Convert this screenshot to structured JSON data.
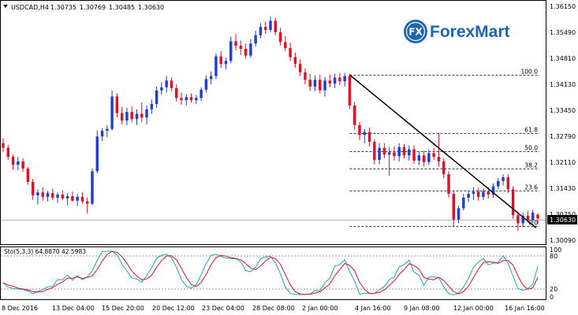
{
  "header": {
    "symbol": "USDCAD,H4",
    "open": "1.30735",
    "high": "1.30769",
    "low": "1.30485",
    "close": "1.30630"
  },
  "logo": {
    "text": "ForexMart",
    "mark": "FX"
  },
  "current_price": "1.30630",
  "price_axis": [
    "1.36150",
    "1.35490",
    "1.34810",
    "1.34130",
    "1.33450",
    "1.32790",
    "1.32110",
    "1.31430",
    "1.30750",
    "1.30090"
  ],
  "fib_levels": [
    {
      "label": "100.0",
      "value": 1.3443
    },
    {
      "label": "61.8",
      "value": 1.3288
    },
    {
      "label": "50.0",
      "value": 1.3242
    },
    {
      "label": "38.2",
      "value": 1.3196
    },
    {
      "label": "23.6",
      "value": 1.3136
    },
    {
      "label": "0.0",
      "value": 1.3042
    }
  ],
  "indicator": {
    "label": "Sto(5,3,3) 64.8870 42.5983",
    "axis": [
      "100",
      "80",
      "20",
      "0"
    ]
  },
  "time_axis": [
    "8 Dec 2016",
    "13 Dec 04:00",
    "15 Dec 20:00",
    "20 Dec 12:00",
    "23 Dec 04:00",
    "28 Dec 08:00",
    "2 Jan 00:00",
    "4 Jan 16:00",
    "9 Jan 08:00",
    "12 Jan 00:00",
    "16 Jan 16:00"
  ],
  "colors": {
    "bull": "#1f3fd0",
    "bear": "#e0102a",
    "trendline": "#000000",
    "stoch_main": "#17a8b8",
    "stoch_signal": "#e0102a",
    "logo_blue": "#1c66b5"
  },
  "chart_data": {
    "type": "candlestick",
    "symbol": "USDCAD",
    "timeframe": "H4",
    "y_range": [
      1.2995,
      1.3635
    ],
    "candles": [
      {
        "o": 1.3262,
        "h": 1.3276,
        "l": 1.3238,
        "c": 1.325
      },
      {
        "o": 1.325,
        "h": 1.3258,
        "l": 1.3218,
        "c": 1.3226
      },
      {
        "o": 1.3226,
        "h": 1.3232,
        "l": 1.3192,
        "c": 1.3205
      },
      {
        "o": 1.3205,
        "h": 1.3226,
        "l": 1.319,
        "c": 1.3214
      },
      {
        "o": 1.3214,
        "h": 1.3222,
        "l": 1.3186,
        "c": 1.3195
      },
      {
        "o": 1.3195,
        "h": 1.32,
        "l": 1.3152,
        "c": 1.316
      },
      {
        "o": 1.316,
        "h": 1.3168,
        "l": 1.3112,
        "c": 1.3124
      },
      {
        "o": 1.3124,
        "h": 1.314,
        "l": 1.31,
        "c": 1.3132
      },
      {
        "o": 1.3132,
        "h": 1.3145,
        "l": 1.311,
        "c": 1.312
      },
      {
        "o": 1.312,
        "h": 1.3136,
        "l": 1.3108,
        "c": 1.313
      },
      {
        "o": 1.313,
        "h": 1.3142,
        "l": 1.3112,
        "c": 1.3118
      },
      {
        "o": 1.3118,
        "h": 1.3132,
        "l": 1.3104,
        "c": 1.3126
      },
      {
        "o": 1.3126,
        "h": 1.3138,
        "l": 1.3112,
        "c": 1.3116
      },
      {
        "o": 1.3116,
        "h": 1.313,
        "l": 1.3098,
        "c": 1.3122
      },
      {
        "o": 1.3122,
        "h": 1.3134,
        "l": 1.3108,
        "c": 1.311
      },
      {
        "o": 1.311,
        "h": 1.3128,
        "l": 1.3096,
        "c": 1.312
      },
      {
        "o": 1.312,
        "h": 1.3132,
        "l": 1.3102,
        "c": 1.3108
      },
      {
        "o": 1.3108,
        "h": 1.3118,
        "l": 1.3076,
        "c": 1.3102
      },
      {
        "o": 1.3102,
        "h": 1.3196,
        "l": 1.3098,
        "c": 1.3188
      },
      {
        "o": 1.3188,
        "h": 1.3296,
        "l": 1.3182,
        "c": 1.328
      },
      {
        "o": 1.328,
        "h": 1.3302,
        "l": 1.3268,
        "c": 1.3295
      },
      {
        "o": 1.3295,
        "h": 1.331,
        "l": 1.3278,
        "c": 1.33
      },
      {
        "o": 1.33,
        "h": 1.3402,
        "l": 1.3296,
        "c": 1.3386
      },
      {
        "o": 1.3386,
        "h": 1.3394,
        "l": 1.333,
        "c": 1.3342
      },
      {
        "o": 1.3342,
        "h": 1.3358,
        "l": 1.3312,
        "c": 1.3322
      },
      {
        "o": 1.3322,
        "h": 1.3356,
        "l": 1.331,
        "c": 1.3345
      },
      {
        "o": 1.3345,
        "h": 1.336,
        "l": 1.3318,
        "c": 1.3326
      },
      {
        "o": 1.3326,
        "h": 1.3352,
        "l": 1.331,
        "c": 1.334
      },
      {
        "o": 1.334,
        "h": 1.337,
        "l": 1.3318,
        "c": 1.333
      },
      {
        "o": 1.333,
        "h": 1.3362,
        "l": 1.3312,
        "c": 1.3352
      },
      {
        "o": 1.3352,
        "h": 1.3378,
        "l": 1.334,
        "c": 1.3366
      },
      {
        "o": 1.3366,
        "h": 1.3412,
        "l": 1.3356,
        "c": 1.3402
      },
      {
        "o": 1.3402,
        "h": 1.3424,
        "l": 1.339,
        "c": 1.341
      },
      {
        "o": 1.341,
        "h": 1.344,
        "l": 1.3396,
        "c": 1.3428
      },
      {
        "o": 1.3428,
        "h": 1.3436,
        "l": 1.34,
        "c": 1.3408
      },
      {
        "o": 1.3408,
        "h": 1.3418,
        "l": 1.3372,
        "c": 1.3382
      },
      {
        "o": 1.3382,
        "h": 1.3396,
        "l": 1.3364,
        "c": 1.3376
      },
      {
        "o": 1.3376,
        "h": 1.3392,
        "l": 1.3362,
        "c": 1.3384
      },
      {
        "o": 1.3384,
        "h": 1.3394,
        "l": 1.337,
        "c": 1.3376
      },
      {
        "o": 1.3376,
        "h": 1.339,
        "l": 1.3366,
        "c": 1.3382
      },
      {
        "o": 1.3382,
        "h": 1.341,
        "l": 1.3374,
        "c": 1.3404
      },
      {
        "o": 1.3404,
        "h": 1.3442,
        "l": 1.3396,
        "c": 1.3432
      },
      {
        "o": 1.3432,
        "h": 1.3452,
        "l": 1.3418,
        "c": 1.344
      },
      {
        "o": 1.344,
        "h": 1.35,
        "l": 1.3432,
        "c": 1.3492
      },
      {
        "o": 1.3492,
        "h": 1.3506,
        "l": 1.3462,
        "c": 1.3472
      },
      {
        "o": 1.3472,
        "h": 1.3488,
        "l": 1.3458,
        "c": 1.348
      },
      {
        "o": 1.348,
        "h": 1.3544,
        "l": 1.3474,
        "c": 1.3532
      },
      {
        "o": 1.3532,
        "h": 1.3552,
        "l": 1.3508,
        "c": 1.352
      },
      {
        "o": 1.352,
        "h": 1.3534,
        "l": 1.3496,
        "c": 1.3512
      },
      {
        "o": 1.3512,
        "h": 1.3526,
        "l": 1.3486,
        "c": 1.3494
      },
      {
        "o": 1.3494,
        "h": 1.3538,
        "l": 1.3488,
        "c": 1.3526
      },
      {
        "o": 1.3526,
        "h": 1.356,
        "l": 1.3518,
        "c": 1.3548
      },
      {
        "o": 1.3548,
        "h": 1.358,
        "l": 1.354,
        "c": 1.357
      },
      {
        "o": 1.357,
        "h": 1.3584,
        "l": 1.3552,
        "c": 1.3562
      },
      {
        "o": 1.3562,
        "h": 1.3598,
        "l": 1.3556,
        "c": 1.3586
      },
      {
        "o": 1.3586,
        "h": 1.3594,
        "l": 1.3548,
        "c": 1.3556
      },
      {
        "o": 1.3556,
        "h": 1.3568,
        "l": 1.352,
        "c": 1.353
      },
      {
        "o": 1.353,
        "h": 1.3546,
        "l": 1.3506,
        "c": 1.3514
      },
      {
        "o": 1.3514,
        "h": 1.3528,
        "l": 1.348,
        "c": 1.349
      },
      {
        "o": 1.349,
        "h": 1.3502,
        "l": 1.3462,
        "c": 1.3472
      },
      {
        "o": 1.3472,
        "h": 1.3484,
        "l": 1.344,
        "c": 1.345
      },
      {
        "o": 1.345,
        "h": 1.346,
        "l": 1.3418,
        "c": 1.343
      },
      {
        "o": 1.343,
        "h": 1.3446,
        "l": 1.34,
        "c": 1.3412
      },
      {
        "o": 1.3412,
        "h": 1.3442,
        "l": 1.34,
        "c": 1.343
      },
      {
        "o": 1.343,
        "h": 1.3444,
        "l": 1.3394,
        "c": 1.3402
      },
      {
        "o": 1.3402,
        "h": 1.3438,
        "l": 1.3386,
        "c": 1.3428
      },
      {
        "o": 1.3428,
        "h": 1.3444,
        "l": 1.341,
        "c": 1.342
      },
      {
        "o": 1.342,
        "h": 1.3446,
        "l": 1.3408,
        "c": 1.3436
      },
      {
        "o": 1.3436,
        "h": 1.3448,
        "l": 1.3416,
        "c": 1.3426
      },
      {
        "o": 1.3426,
        "h": 1.3448,
        "l": 1.3412,
        "c": 1.344
      },
      {
        "o": 1.344,
        "h": 1.3446,
        "l": 1.3352,
        "c": 1.3362
      },
      {
        "o": 1.3362,
        "h": 1.3372,
        "l": 1.3298,
        "c": 1.331
      },
      {
        "o": 1.331,
        "h": 1.3318,
        "l": 1.327,
        "c": 1.3284
      },
      {
        "o": 1.3284,
        "h": 1.33,
        "l": 1.3262,
        "c": 1.3292
      },
      {
        "o": 1.3292,
        "h": 1.3304,
        "l": 1.3254,
        "c": 1.3266
      },
      {
        "o": 1.3266,
        "h": 1.3272,
        "l": 1.3206,
        "c": 1.3218
      },
      {
        "o": 1.3218,
        "h": 1.3262,
        "l": 1.3206,
        "c": 1.325
      },
      {
        "o": 1.325,
        "h": 1.3262,
        "l": 1.3222,
        "c": 1.3232
      },
      {
        "o": 1.3232,
        "h": 1.3252,
        "l": 1.3176,
        "c": 1.3238
      },
      {
        "o": 1.3238,
        "h": 1.3254,
        "l": 1.3216,
        "c": 1.3228
      },
      {
        "o": 1.3228,
        "h": 1.3262,
        "l": 1.3214,
        "c": 1.3252
      },
      {
        "o": 1.3252,
        "h": 1.326,
        "l": 1.3222,
        "c": 1.323
      },
      {
        "o": 1.323,
        "h": 1.3256,
        "l": 1.3216,
        "c": 1.3246
      },
      {
        "o": 1.3246,
        "h": 1.3256,
        "l": 1.3208,
        "c": 1.3216
      },
      {
        "o": 1.3216,
        "h": 1.324,
        "l": 1.3204,
        "c": 1.323
      },
      {
        "o": 1.323,
        "h": 1.3242,
        "l": 1.32,
        "c": 1.3212
      },
      {
        "o": 1.3212,
        "h": 1.3246,
        "l": 1.3204,
        "c": 1.3236
      },
      {
        "o": 1.3236,
        "h": 1.325,
        "l": 1.3218,
        "c": 1.3226
      },
      {
        "o": 1.3226,
        "h": 1.329,
        "l": 1.32,
        "c": 1.3214
      },
      {
        "o": 1.3214,
        "h": 1.3222,
        "l": 1.317,
        "c": 1.318
      },
      {
        "o": 1.318,
        "h": 1.3188,
        "l": 1.3118,
        "c": 1.3128
      },
      {
        "o": 1.3128,
        "h": 1.3136,
        "l": 1.3042,
        "c": 1.306
      },
      {
        "o": 1.306,
        "h": 1.3098,
        "l": 1.305,
        "c": 1.309
      },
      {
        "o": 1.309,
        "h": 1.3128,
        "l": 1.3084,
        "c": 1.3118
      },
      {
        "o": 1.3118,
        "h": 1.3136,
        "l": 1.3106,
        "c": 1.3128
      },
      {
        "o": 1.3128,
        "h": 1.3146,
        "l": 1.3112,
        "c": 1.3134
      },
      {
        "o": 1.3134,
        "h": 1.3144,
        "l": 1.311,
        "c": 1.312
      },
      {
        "o": 1.312,
        "h": 1.3142,
        "l": 1.3112,
        "c": 1.3134
      },
      {
        "o": 1.3134,
        "h": 1.3146,
        "l": 1.3116,
        "c": 1.3126
      },
      {
        "o": 1.3126,
        "h": 1.3156,
        "l": 1.3118,
        "c": 1.3148
      },
      {
        "o": 1.3148,
        "h": 1.317,
        "l": 1.314,
        "c": 1.3162
      },
      {
        "o": 1.3162,
        "h": 1.318,
        "l": 1.315,
        "c": 1.3172
      },
      {
        "o": 1.3172,
        "h": 1.318,
        "l": 1.313,
        "c": 1.314
      },
      {
        "o": 1.314,
        "h": 1.3148,
        "l": 1.3062,
        "c": 1.3072
      },
      {
        "o": 1.3072,
        "h": 1.3082,
        "l": 1.303,
        "c": 1.305
      },
      {
        "o": 1.305,
        "h": 1.3078,
        "l": 1.304,
        "c": 1.307
      },
      {
        "o": 1.307,
        "h": 1.3084,
        "l": 1.3052,
        "c": 1.3058
      },
      {
        "o": 1.3058,
        "h": 1.3086,
        "l": 1.305,
        "c": 1.3078
      },
      {
        "o": 1.3073,
        "h": 1.3077,
        "l": 1.3048,
        "c": 1.3063
      }
    ],
    "fib_retracement": {
      "from": 1.3443,
      "to": 1.3042
    },
    "stochastic": {
      "params": "5,3,3",
      "main": 64.887,
      "signal": 42.5983,
      "levels": [
        80,
        20
      ],
      "range": [
        0,
        100
      ]
    }
  }
}
